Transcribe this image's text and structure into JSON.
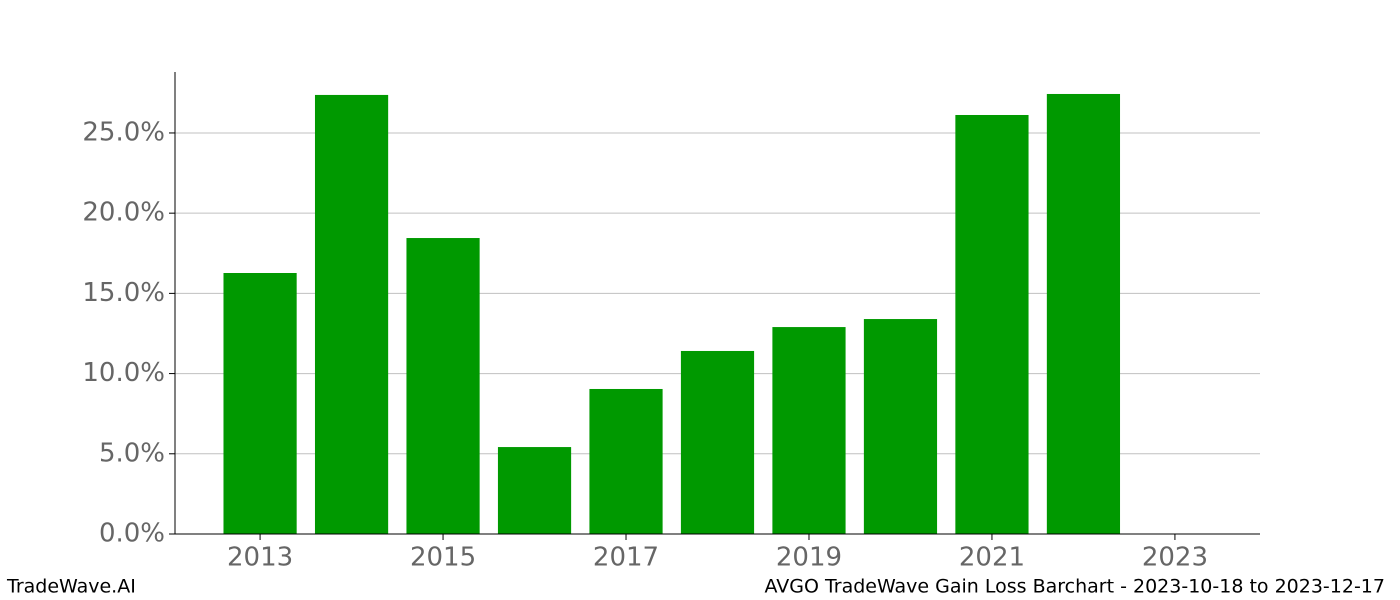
{
  "chart_data": {
    "type": "bar",
    "x": [
      2013,
      2014,
      2015,
      2016,
      2017,
      2018,
      2019,
      2020,
      2021,
      2022
    ],
    "values": [
      16.27,
      27.37,
      18.45,
      5.42,
      9.04,
      11.41,
      12.9,
      13.4,
      26.12,
      27.43
    ],
    "color": "#009900",
    "xlim": [
      2012.07,
      2023.93
    ],
    "xticks": [
      2013,
      2015,
      2017,
      2019,
      2021,
      2023
    ],
    "ylim": [
      0,
      28.8
    ],
    "yticks": [
      {
        "value": 0,
        "label": "0.0%"
      },
      {
        "value": 5,
        "label": "5.0%"
      },
      {
        "value": 10,
        "label": "10.0%"
      },
      {
        "value": 15,
        "label": "15.0%"
      },
      {
        "value": 20,
        "label": "20.0%"
      },
      {
        "value": 25,
        "label": "25.0%"
      }
    ],
    "grid": true,
    "bar_width": 0.8
  },
  "footer": {
    "left": "TradeWave.AI",
    "right": "AVGO TradeWave Gain Loss Barchart - 2023-10-18 to 2023-12-17"
  }
}
